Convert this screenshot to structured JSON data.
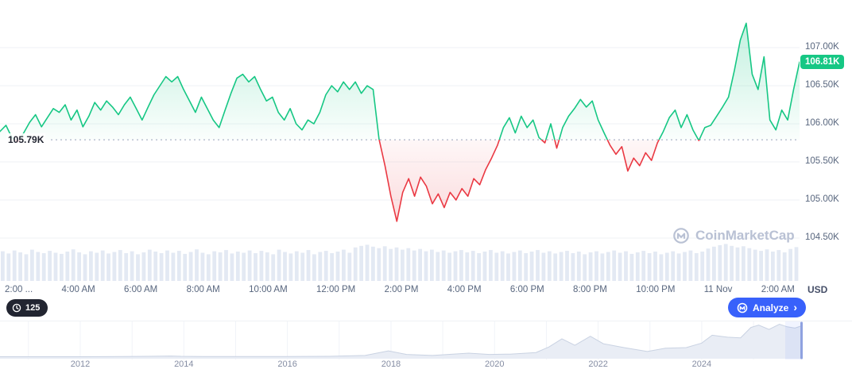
{
  "colors": {
    "green": "#16c784",
    "red": "#ea3943",
    "blue": "#3861fb",
    "grid": "#eff2f5",
    "axis_text": "#58667e",
    "dark_text": "#222531",
    "volume_bar": "#e3e9f3",
    "timeline_fill": "#e9edf5",
    "timeline_line": "#c9d2e2",
    "watermark": "#b9c1d4",
    "badge_dark_bg": "#222531"
  },
  "price": {
    "current_label": "106.81K",
    "current_value": 106.81,
    "baseline_label": "105.79K",
    "baseline_value": 105.79
  },
  "y_axis": {
    "unit_label": "USD",
    "ticks": [
      {
        "label": "107.00K",
        "value": 107.0
      },
      {
        "label": "106.50K",
        "value": 106.5
      },
      {
        "label": "106.00K",
        "value": 106.0
      },
      {
        "label": "105.50K",
        "value": 105.5
      },
      {
        "label": "105.00K",
        "value": 105.0
      },
      {
        "label": "104.50K",
        "value": 104.5
      }
    ]
  },
  "x_axis": {
    "labels": [
      "2:00 ...",
      "4:00 AM",
      "6:00 AM",
      "8:00 AM",
      "10:00 AM",
      "12:00 PM",
      "2:00 PM",
      "4:00 PM",
      "6:00 PM",
      "8:00 PM",
      "10:00 PM",
      "11 Nov",
      "2:00 AM"
    ]
  },
  "controls": {
    "countdown_badge": "125",
    "analyze_label": "Analyze",
    "analyze_chevron": "›"
  },
  "watermark_text": "CoinMarketCap",
  "timeline": {
    "year_labels": [
      {
        "label": "2012",
        "year": 2012
      },
      {
        "label": "2014",
        "year": 2014
      },
      {
        "label": "2016",
        "year": 2016
      },
      {
        "label": "2018",
        "year": 2018
      },
      {
        "label": "2020",
        "year": 2020
      },
      {
        "label": "2022",
        "year": 2022
      },
      {
        "label": "2024",
        "year": 2024
      }
    ]
  },
  "chart_data": [
    {
      "type": "line",
      "name": "intraday-price",
      "title": "",
      "ylabel": "Price (K USD)",
      "ylim": [
        104.3,
        107.5
      ],
      "baseline": 105.79,
      "current": 106.81,
      "y_ticks": [
        107.0,
        106.5,
        106.0,
        105.5,
        105.0,
        104.5
      ],
      "x_tick_labels": [
        "2:00 ...",
        "4:00 AM",
        "6:00 AM",
        "8:00 AM",
        "10:00 AM",
        "12:00 PM",
        "2:00 PM",
        "4:00 PM",
        "6:00 PM",
        "8:00 PM",
        "10:00 PM",
        "11 Nov",
        "2:00 AM"
      ],
      "color_above": "#16c784",
      "color_below": "#ea3943",
      "values": [
        105.9,
        105.98,
        105.82,
        105.76,
        105.88,
        106.02,
        106.12,
        105.96,
        106.08,
        106.2,
        106.15,
        106.25,
        106.05,
        106.18,
        105.96,
        106.1,
        106.28,
        106.18,
        106.3,
        106.22,
        106.12,
        106.25,
        106.35,
        106.2,
        106.05,
        106.22,
        106.38,
        106.5,
        106.62,
        106.55,
        106.62,
        106.45,
        106.3,
        106.15,
        106.35,
        106.2,
        106.05,
        105.95,
        106.18,
        106.4,
        106.6,
        106.65,
        106.55,
        106.62,
        106.45,
        106.3,
        106.35,
        106.15,
        106.05,
        106.2,
        106.0,
        105.92,
        106.05,
        106.0,
        106.15,
        106.38,
        106.5,
        106.42,
        106.55,
        106.45,
        106.55,
        106.4,
        106.5,
        106.45,
        105.8,
        105.45,
        105.05,
        104.72,
        105.1,
        105.28,
        105.05,
        105.3,
        105.18,
        104.95,
        105.08,
        104.9,
        105.1,
        105.0,
        105.15,
        105.05,
        105.28,
        105.2,
        105.4,
        105.55,
        105.72,
        105.95,
        106.08,
        105.88,
        106.1,
        105.95,
        106.05,
        105.82,
        105.75,
        106.0,
        105.68,
        105.95,
        106.1,
        106.2,
        106.32,
        106.22,
        106.3,
        106.05,
        105.88,
        105.72,
        105.6,
        105.7,
        105.38,
        105.55,
        105.45,
        105.62,
        105.52,
        105.75,
        105.9,
        106.08,
        106.18,
        105.95,
        106.12,
        105.92,
        105.78,
        105.95,
        105.98,
        106.1,
        106.22,
        106.35,
        106.7,
        107.1,
        107.32,
        106.65,
        106.45,
        106.88,
        106.05,
        105.92,
        106.18,
        106.05,
        106.45,
        106.81
      ]
    },
    {
      "type": "bar",
      "name": "volume",
      "values_norm": [
        0.78,
        0.72,
        0.8,
        0.75,
        0.7,
        0.82,
        0.76,
        0.73,
        0.79,
        0.74,
        0.71,
        0.77,
        0.83,
        0.75,
        0.7,
        0.78,
        0.74,
        0.8,
        0.72,
        0.76,
        0.81,
        0.73,
        0.78,
        0.7,
        0.75,
        0.82,
        0.77,
        0.73,
        0.8,
        0.74,
        0.79,
        0.71,
        0.76,
        0.83,
        0.74,
        0.7,
        0.78,
        0.75,
        0.81,
        0.72,
        0.77,
        0.74,
        0.8,
        0.73,
        0.79,
        0.75,
        0.7,
        0.82,
        0.76,
        0.72,
        0.78,
        0.74,
        0.81,
        0.7,
        0.76,
        0.79,
        0.73,
        0.77,
        0.82,
        0.74,
        0.88,
        0.92,
        0.95,
        0.9,
        0.86,
        0.91,
        0.84,
        0.88,
        0.82,
        0.86,
        0.8,
        0.84,
        0.78,
        0.82,
        0.76,
        0.8,
        0.74,
        0.78,
        0.81,
        0.75,
        0.79,
        0.73,
        0.77,
        0.81,
        0.74,
        0.78,
        0.72,
        0.76,
        0.8,
        0.73,
        0.77,
        0.81,
        0.74,
        0.78,
        0.72,
        0.76,
        0.79,
        0.73,
        0.77,
        0.7,
        0.75,
        0.78,
        0.72,
        0.76,
        0.8,
        0.74,
        0.78,
        0.71,
        0.75,
        0.79,
        0.73,
        0.77,
        0.7,
        0.74,
        0.78,
        0.72,
        0.76,
        0.8,
        0.73,
        0.77,
        0.85,
        0.9,
        0.94,
        0.97,
        0.92,
        0.88,
        0.91,
        0.86,
        0.82,
        0.79,
        0.83,
        0.77,
        0.81,
        0.75,
        0.84,
        0.89
      ]
    },
    {
      "type": "area",
      "name": "all-time-overview",
      "x_tick_labels": [
        "2012",
        "2014",
        "2016",
        "2018",
        "2020",
        "2022",
        "2024"
      ],
      "x_years": [
        2010.45,
        2011.0,
        2011.6,
        2012.0,
        2012.8,
        2013.3,
        2013.75,
        2013.95,
        2014.5,
        2015.2,
        2016.0,
        2016.8,
        2017.5,
        2017.95,
        2018.3,
        2018.8,
        2019.5,
        2019.9,
        2020.3,
        2020.8,
        2021.05,
        2021.3,
        2021.55,
        2021.85,
        2022.1,
        2022.5,
        2022.95,
        2023.3,
        2023.7,
        2024.0,
        2024.2,
        2024.5,
        2024.75,
        2024.95,
        2025.1,
        2025.3,
        2025.5,
        2025.65,
        2025.8,
        2025.95
      ],
      "values_norm": [
        0.0,
        0.0,
        0.0,
        0.0,
        0.008,
        0.012,
        0.022,
        0.012,
        0.006,
        0.004,
        0.008,
        0.012,
        0.04,
        0.18,
        0.07,
        0.04,
        0.11,
        0.07,
        0.08,
        0.13,
        0.3,
        0.55,
        0.35,
        0.63,
        0.4,
        0.28,
        0.16,
        0.26,
        0.28,
        0.42,
        0.66,
        0.6,
        0.58,
        0.9,
        0.97,
        0.84,
        1.0,
        0.92,
        0.88,
        0.96
      ]
    }
  ]
}
